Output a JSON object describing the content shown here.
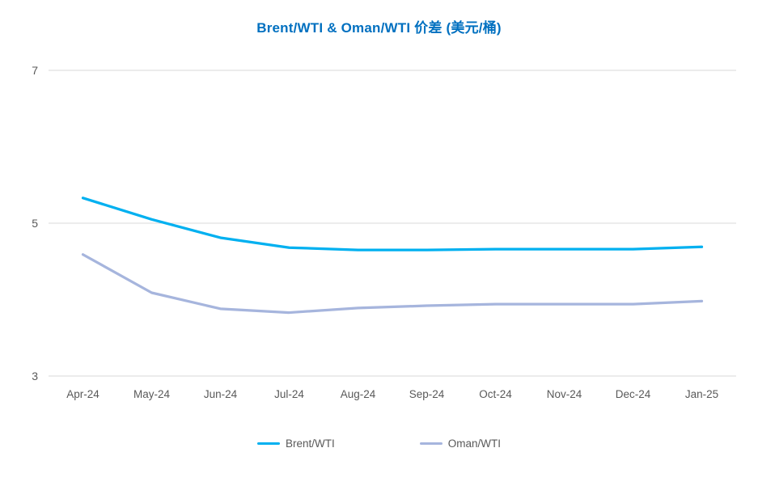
{
  "chart_data": {
    "type": "line",
    "title": "Brent/WTI & Oman/WTI 价差 (美元/桶)",
    "title_color": "#0070C0",
    "categories": [
      "Apr-24",
      "May-24",
      "Jun-24",
      "Jul-24",
      "Aug-24",
      "Sep-24",
      "Oct-24",
      "Nov-24",
      "Dec-24",
      "Jan-25"
    ],
    "series": [
      {
        "name": "Brent/WTI",
        "color": "#00B0F0",
        "values": [
          5.33,
          5.05,
          4.81,
          4.68,
          4.65,
          4.65,
          4.66,
          4.66,
          4.66,
          4.69
        ]
      },
      {
        "name": "Oman/WTI",
        "color": "#A6B5DD",
        "values": [
          4.59,
          4.09,
          3.88,
          3.83,
          3.89,
          3.92,
          3.94,
          3.94,
          3.94,
          3.98
        ]
      }
    ],
    "xlabel": "",
    "ylabel": "",
    "ylim": [
      3,
      7
    ],
    "yticks": [
      7,
      5,
      3
    ],
    "grid": true,
    "legend_position": "bottom",
    "gridline_color": "#D9D9D9",
    "axis_text_color": "#595959"
  }
}
